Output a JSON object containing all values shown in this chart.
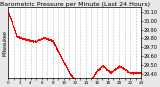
{
  "title": "Barometric Pressure per Minute (Last 24 Hours)",
  "title_fontsize": 4.5,
  "bg_color": "#e8e8e8",
  "plot_bg_color": "#ffffff",
  "line_color": "#ff0000",
  "grid_color": "#aaaaaa",
  "ylim": [
    29.35,
    30.15
  ],
  "yticks": [
    29.4,
    29.5,
    29.6,
    29.7,
    29.8,
    29.9,
    30.0,
    30.1
  ],
  "ytick_fontsize": 3.5,
  "xtick_fontsize": 3.0,
  "marker_size": 0.7,
  "ylabel_left": "Milwaukee",
  "ylabel_left_fontsize": 3.5
}
